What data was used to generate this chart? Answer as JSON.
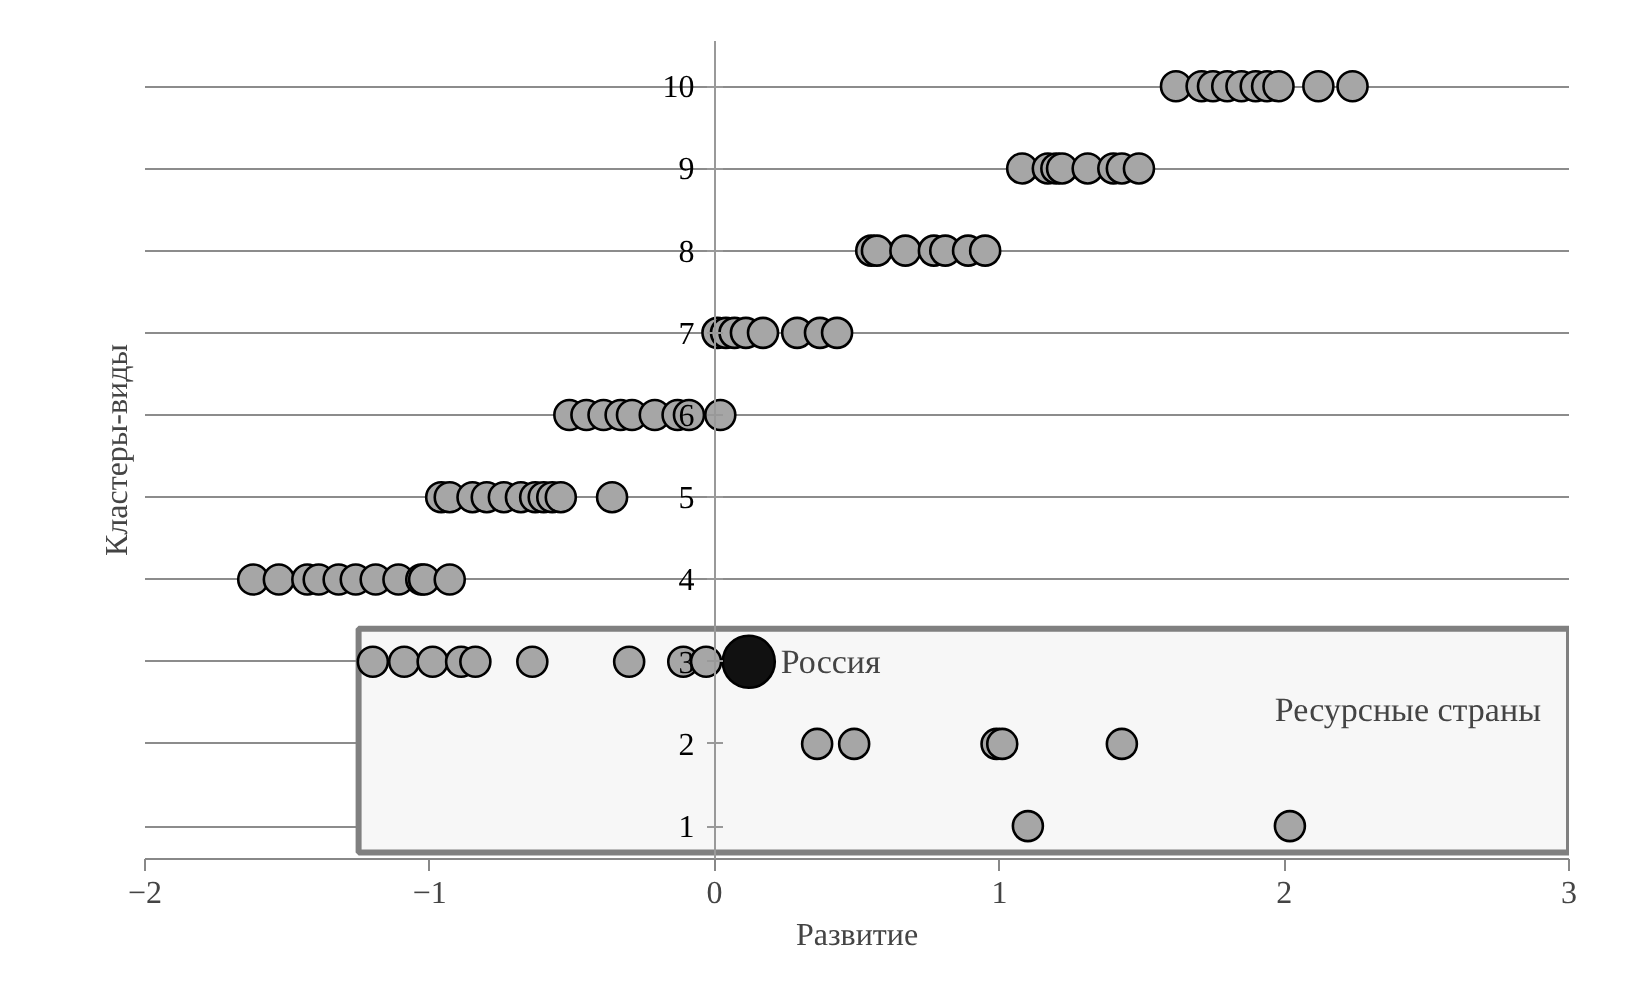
{
  "chart_data": {
    "type": "scatter",
    "xlabel": "Развитие",
    "ylabel": "Кластеры-виды",
    "xlim": [
      -2,
      3
    ],
    "xticks": [
      -2,
      -1,
      0,
      1,
      2,
      3
    ],
    "ylim": [
      0.6,
      10.55
    ],
    "yticks": [
      1,
      2,
      3,
      4,
      5,
      6,
      7,
      8,
      9,
      10
    ],
    "grid": "y",
    "marker": "circle",
    "series": [
      {
        "color": "#a6a6a6",
        "x": [
          1.62,
          1.71,
          1.75,
          1.8,
          1.85,
          1.9,
          1.94,
          1.98,
          2.12,
          2.24,
          1.08,
          1.17,
          1.2,
          1.22,
          1.31,
          1.4,
          1.43,
          1.49,
          0.55,
          0.57,
          0.67,
          0.77,
          0.81,
          0.89,
          0.95,
          0.01,
          0.04,
          0.07,
          0.11,
          0.17,
          0.29,
          0.37,
          0.43,
          -0.51,
          -0.45,
          -0.39,
          -0.33,
          -0.29,
          -0.21,
          -0.13,
          -0.09,
          0.02,
          -0.96,
          -0.93,
          -0.85,
          -0.8,
          -0.74,
          -0.68,
          -0.63,
          -0.6,
          -0.57,
          -0.54,
          -0.36,
          -1.62,
          -1.53,
          -1.43,
          -1.39,
          -1.32,
          -1.26,
          -1.19,
          -1.11,
          -1.03,
          -1.02,
          -0.93,
          -1.2,
          -1.09,
          -0.99,
          -0.89,
          -0.84,
          -0.64,
          -0.3,
          -0.11,
          -0.03,
          0.36,
          0.49,
          0.99,
          1.01,
          1.43,
          1.1,
          2.02
        ],
        "values": [
          10,
          10,
          10,
          10,
          10,
          10,
          10,
          10,
          10,
          10,
          9,
          9,
          9,
          9,
          9,
          9,
          9,
          9,
          8,
          8,
          8,
          8,
          8,
          8,
          8,
          7,
          7,
          7,
          7,
          7,
          7,
          7,
          7,
          6,
          6,
          6,
          6,
          6,
          6,
          6,
          6,
          6,
          5,
          5,
          5,
          5,
          5,
          5,
          5,
          5,
          5,
          5,
          5,
          4,
          4,
          4,
          4,
          4,
          4,
          4,
          4,
          4,
          4,
          4,
          3,
          3,
          3,
          3,
          3,
          3,
          3,
          3,
          3,
          2,
          2,
          2,
          2,
          2,
          1,
          1
        ]
      },
      {
        "color": "#111111",
        "x": [
          0.12
        ],
        "values": [
          3
        ]
      }
    ],
    "bands": [
      {
        "axis": "x",
        "from": -1.25,
        "to": 3,
        "label": "Ресурсные страны",
        "color": "#f7f7f7"
      }
    ],
    "annotations": [
      {
        "text": "Россия",
        "x": 0.12,
        "y": 3
      }
    ]
  }
}
